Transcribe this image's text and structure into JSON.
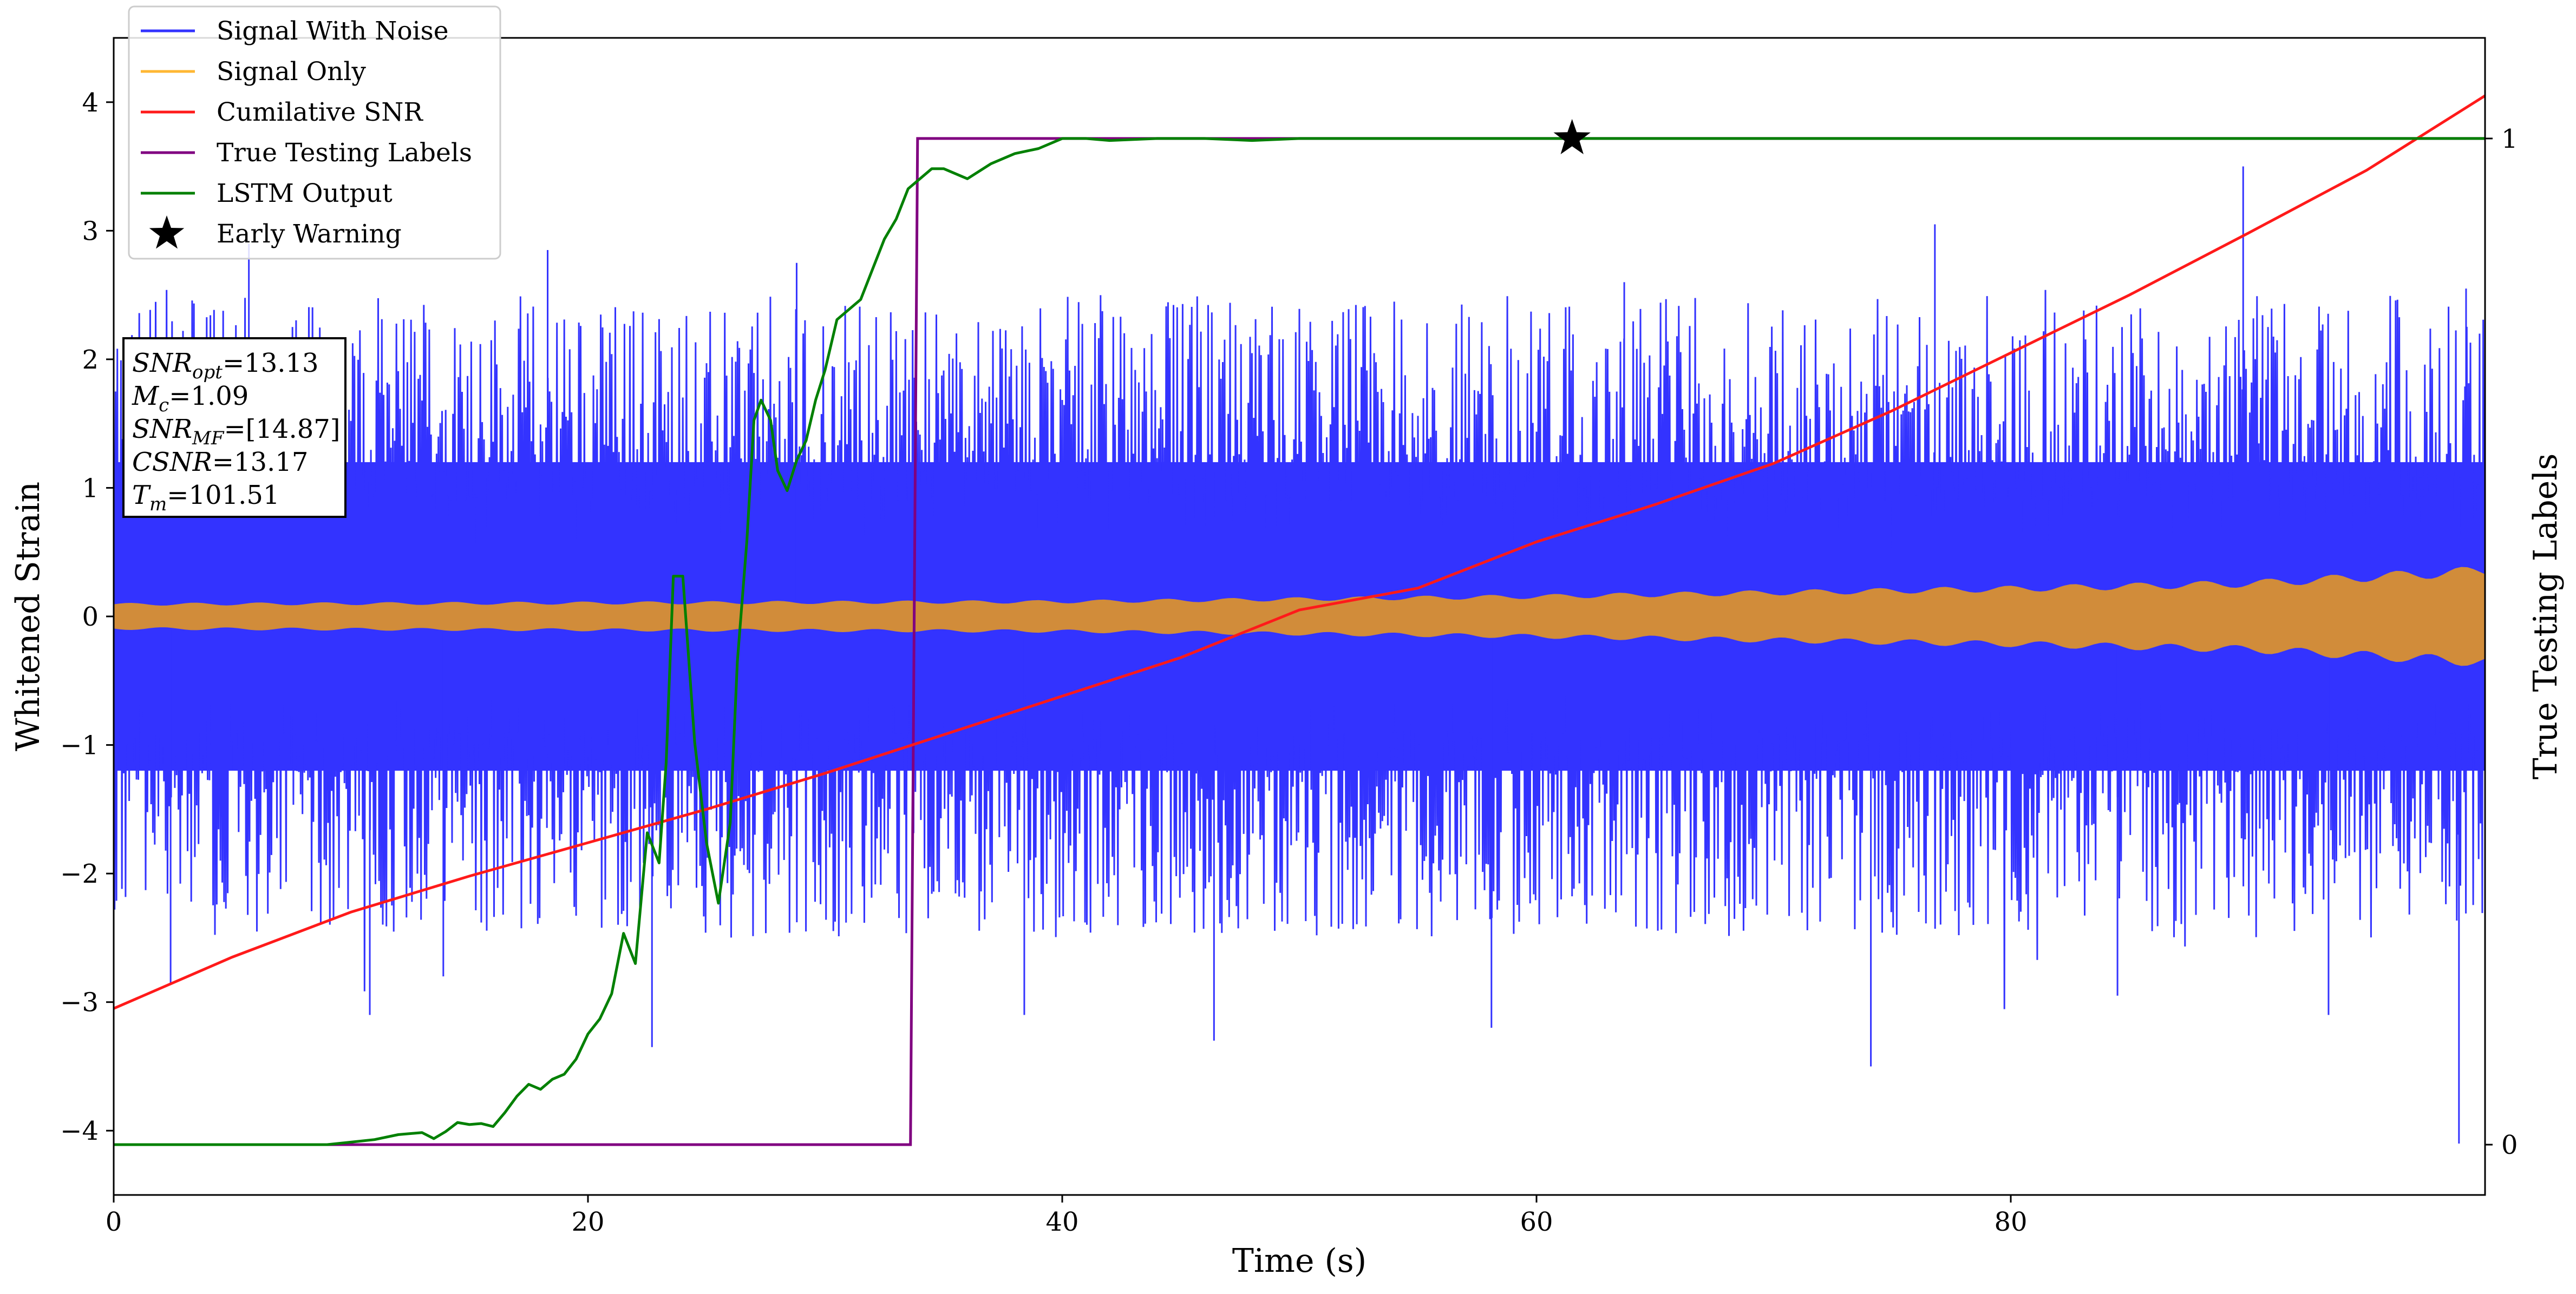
{
  "chart_data": {
    "type": "line",
    "xlabel": "Time (s)",
    "ylabel": "Whitened Strain",
    "y2label": "True Testing Labels",
    "xlim": [
      0,
      100
    ],
    "ylim": [
      -4.5,
      4.5
    ],
    "y2lim": [
      -0.05,
      1.1
    ],
    "xticks": [
      0,
      20,
      40,
      60,
      80
    ],
    "yticks": [
      -4,
      -3,
      -2,
      -1,
      0,
      1,
      2,
      3,
      4
    ],
    "y2ticks": [
      0,
      1
    ],
    "grid": false,
    "legend_position": "top-left",
    "colors": {
      "signal_with_noise": "#3333ff",
      "signal_only": "#ffb733",
      "signal_only_band": "#d18c3a",
      "cumulative_snr": "#ff1a1a",
      "true_labels": "#800080",
      "lstm_output": "#008000",
      "early_warning": "#000000"
    },
    "legend": [
      {
        "name": "Signal With Noise",
        "key": "signal_with_noise",
        "marker": "line"
      },
      {
        "name": "Signal Only",
        "key": "signal_only",
        "marker": "line"
      },
      {
        "name": "Cumilative SNR",
        "key": "cumulative_snr",
        "marker": "line"
      },
      {
        "name": "True Testing Labels",
        "key": "true_labels",
        "marker": "line"
      },
      {
        "name": "LSTM Output",
        "key": "lstm_output",
        "marker": "line"
      },
      {
        "name": "Early Warning",
        "key": "early_warning",
        "marker": "star"
      }
    ],
    "signal_with_noise": {
      "axis": "left",
      "description_range": [
        -4.1,
        3.5
      ],
      "typical_envelope_pos": [
        1.5,
        2.5
      ],
      "typical_envelope_neg": [
        -1.5,
        -2.5
      ]
    },
    "signal_only": {
      "axis": "left",
      "envelope": {
        "x": [
          0,
          20,
          40,
          50,
          60,
          70,
          80,
          90,
          100
        ],
        "amp": [
          0.09,
          0.1,
          0.11,
          0.13,
          0.15,
          0.18,
          0.21,
          0.25,
          0.35
        ]
      }
    },
    "cumulative_snr": {
      "axis": "left",
      "x": [
        0,
        5,
        10,
        15,
        20,
        25,
        30,
        35,
        40,
        45,
        50,
        55,
        60,
        65,
        70,
        75,
        80,
        85,
        90,
        95,
        100
      ],
      "y": [
        -3.05,
        -2.65,
        -2.3,
        -2.02,
        -1.76,
        -1.5,
        -1.22,
        -0.92,
        -0.62,
        -0.32,
        0.05,
        0.22,
        0.58,
        0.87,
        1.19,
        1.6,
        2.05,
        2.5,
        2.98,
        3.47,
        4.05
      ]
    },
    "true_labels": {
      "axis": "right",
      "x": [
        0,
        33.6,
        33.9,
        100
      ],
      "y": [
        0,
        0,
        1,
        1
      ]
    },
    "lstm_output": {
      "axis": "right",
      "x": [
        0,
        9,
        11,
        12,
        13,
        13.5,
        14,
        14.5,
        15,
        15.5,
        16,
        16.5,
        17,
        17.5,
        18,
        18.5,
        19,
        19.5,
        20,
        20.5,
        21,
        21.5,
        22,
        22.5,
        23,
        23.3,
        23.6,
        24,
        24.5,
        25,
        25.5,
        26,
        26.3,
        26.7,
        27,
        27.3,
        27.7,
        28,
        28.4,
        28.8,
        29.2,
        29.6,
        30,
        30.5,
        31,
        31.5,
        32,
        32.5,
        33,
        33.5,
        34,
        34.5,
        35,
        36,
        37,
        38,
        39,
        40,
        41,
        42,
        44,
        46,
        48,
        50,
        55,
        60,
        65,
        70,
        100
      ],
      "y": [
        0,
        0,
        0.005,
        0.01,
        0.012,
        0.006,
        0.013,
        0.022,
        0.02,
        0.021,
        0.018,
        0.032,
        0.048,
        0.06,
        0.055,
        0.065,
        0.07,
        0.085,
        0.11,
        0.125,
        0.15,
        0.21,
        0.18,
        0.31,
        0.28,
        0.38,
        0.565,
        0.565,
        0.4,
        0.3,
        0.24,
        0.32,
        0.48,
        0.6,
        0.72,
        0.74,
        0.72,
        0.67,
        0.65,
        0.68,
        0.7,
        0.74,
        0.77,
        0.82,
        0.83,
        0.84,
        0.87,
        0.9,
        0.92,
        0.95,
        0.96,
        0.97,
        0.97,
        0.96,
        0.975,
        0.985,
        0.99,
        1.0,
        1.0,
        0.998,
        1.0,
        1.0,
        0.998,
        1.0,
        1.0,
        1.0,
        1.0,
        1.0,
        1.0
      ]
    },
    "early_warning": {
      "axis": "right",
      "x": 61.5,
      "y": 1.0
    },
    "info_box": [
      {
        "base": "SNR",
        "sub": "opt",
        "rest": "=13.13"
      },
      {
        "base": "M",
        "sub": "c",
        "rest": "=1.09"
      },
      {
        "base": "SNR",
        "sub": "MF",
        "rest": "=[14.87]"
      },
      {
        "base": "CSNR",
        "sub": "",
        "rest": "=13.17"
      },
      {
        "base": "T",
        "sub": "m",
        "rest": "=101.51"
      }
    ]
  }
}
